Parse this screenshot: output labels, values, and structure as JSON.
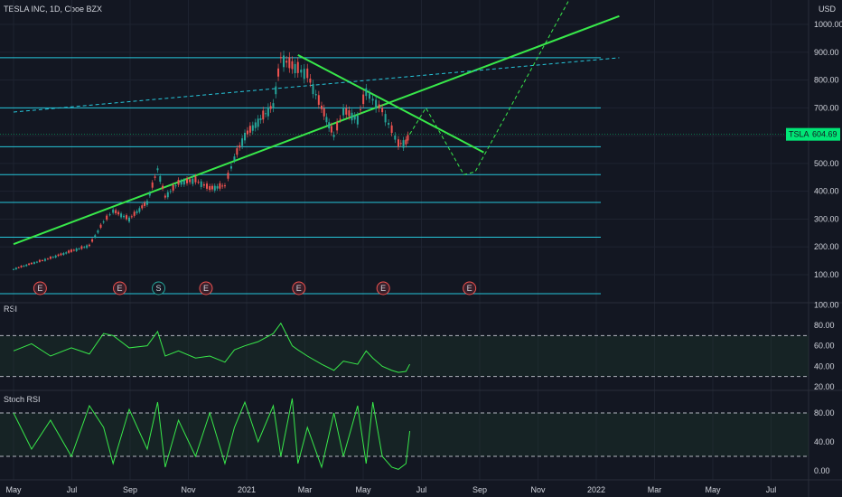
{
  "chart_data": {
    "type": "candlestick",
    "title": "TESLA INC, 1D, Cboe BZX",
    "currency": "USD",
    "price_axis": {
      "scale": "linear",
      "ticks": [
        "1000.00",
        "900.00",
        "800.00",
        "700.00",
        "600.00",
        "500.00",
        "400.00",
        "300.00",
        "200.00",
        "100.00"
      ],
      "values": [
        1000,
        900,
        800,
        700,
        600,
        500,
        400,
        300,
        200,
        100
      ]
    },
    "last_price": {
      "label": "TSLA",
      "value": "604.69",
      "color": "#00e676"
    },
    "time_axis": [
      "May",
      "Jul",
      "Sep",
      "Nov",
      "2021",
      "Mar",
      "May",
      "Jul",
      "Sep",
      "Nov",
      "2022",
      "Mar",
      "May",
      "Jul"
    ],
    "price_series": {
      "dates": [
        "2020-04-01",
        "2020-04-20",
        "2020-05-10",
        "2020-06-01",
        "2020-06-20",
        "2020-07-05",
        "2020-07-15",
        "2020-08-01",
        "2020-08-20",
        "2020-08-31",
        "2020-09-08",
        "2020-09-22",
        "2020-10-10",
        "2020-10-25",
        "2020-11-10",
        "2020-11-20",
        "2020-12-01",
        "2020-12-15",
        "2020-12-31",
        "2021-01-08",
        "2021-01-20",
        "2021-01-26",
        "2021-02-05",
        "2021-02-20",
        "2021-03-05",
        "2021-03-15",
        "2021-03-30",
        "2021-04-08",
        "2021-04-15",
        "2021-04-25",
        "2021-05-05",
        "2021-05-12",
        "2021-05-20",
        "2021-05-24"
      ],
      "close": [
        120,
        140,
        160,
        185,
        205,
        290,
        330,
        300,
        360,
        480,
        380,
        430,
        440,
        410,
        420,
        520,
        600,
        650,
        710,
        880,
        850,
        840,
        820,
        700,
        600,
        690,
        660,
        760,
        730,
        690,
        620,
        570,
        575,
        605
      ]
    },
    "horizontal_levels": [
      880,
      700,
      560,
      460,
      360,
      235
    ],
    "earnings_markers": [
      {
        "date": "2020-04-29",
        "label": "E"
      },
      {
        "date": "2020-07-22",
        "label": "E"
      },
      {
        "date": "2020-09-01",
        "label": "S"
      },
      {
        "date": "2020-10-21",
        "label": "E"
      },
      {
        "date": "2021-01-27",
        "label": "E"
      },
      {
        "date": "2021-04-26",
        "label": "E"
      },
      {
        "date": "2021-07-26",
        "label": "E"
      }
    ],
    "trendlines": [
      {
        "name": "rising support",
        "from": [
          "2020-04-01",
          210
        ],
        "to": [
          "2021-12-31",
          1030
        ]
      },
      {
        "name": "descending resistance",
        "from": [
          "2021-01-26",
          890
        ],
        "to": [
          "2021-08-10",
          540
        ]
      }
    ],
    "projection_path": [
      [
        "2021-05-24",
        605
      ],
      [
        "2021-06-10",
        700
      ],
      [
        "2021-07-20",
        460
      ],
      [
        "2021-08-01",
        470
      ],
      [
        "2021-11-10",
        1100
      ]
    ],
    "dashed_line": {
      "from": [
        "2020-04-01",
        685
      ],
      "to": [
        "2021-12-31",
        880
      ]
    },
    "rsi": {
      "label": "RSI",
      "ticks": [
        "100.00",
        "80.00",
        "60.00",
        "40.00",
        "20.00"
      ],
      "values": [
        100,
        80,
        60,
        40,
        20
      ],
      "upper": 70,
      "lower": 30,
      "series": [
        55,
        62,
        50,
        58,
        52,
        72,
        70,
        58,
        60,
        74,
        50,
        55,
        48,
        50,
        44,
        56,
        60,
        64,
        72,
        82,
        60,
        56,
        50,
        42,
        36,
        45,
        42,
        55,
        48,
        40,
        36,
        34,
        35,
        42
      ]
    },
    "stoch_rsi": {
      "label": "Stoch RSI",
      "ticks": [
        "80.00",
        "40.00",
        "0.00"
      ],
      "values": [
        80,
        40,
        0
      ],
      "upper": 80,
      "lower": 20,
      "series": [
        80,
        30,
        70,
        20,
        90,
        60,
        10,
        85,
        30,
        95,
        5,
        70,
        20,
        80,
        10,
        60,
        95,
        40,
        90,
        20,
        100,
        10,
        60,
        5,
        80,
        20,
        90,
        10,
        95,
        20,
        5,
        2,
        10,
        55
      ]
    }
  }
}
